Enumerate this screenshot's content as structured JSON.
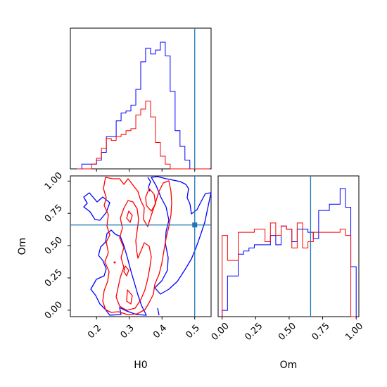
{
  "chart_data": {
    "type": "corner",
    "parameters": [
      "H0",
      "Om"
    ],
    "series_colors": [
      "#0000ff",
      "#ff0000"
    ],
    "truth_color": "#1f77b4",
    "truth": {
      "H0": 0.5,
      "Om": 0.66
    },
    "panels": {
      "h0_hist": {
        "type": "histogram",
        "xlim": [
          0.12,
          0.55
        ],
        "bin_edges": [
          0.14,
          0.155,
          0.17,
          0.185,
          0.2,
          0.215,
          0.23,
          0.245,
          0.26,
          0.275,
          0.29,
          0.305,
          0.32,
          0.335,
          0.35,
          0.365,
          0.38,
          0.395,
          0.41,
          0.425,
          0.44,
          0.455,
          0.47,
          0.485,
          0.5,
          0.515,
          0.53,
          0.545
        ],
        "series": [
          {
            "color": "#0000ff",
            "counts": [
              0,
              1,
              1,
              1,
              3,
              7,
              15,
              15,
              23,
              27,
              28,
              31,
              39,
              53,
              60,
              57,
              59,
              63,
              56,
              38,
              18,
              10,
              3,
              0,
              0,
              0,
              0
            ]
          },
          {
            "color": "#ff0000",
            "counts": [
              0,
              0,
              0,
              1,
              4,
              9,
              14,
              13,
              15,
              16,
              18,
              19,
              26,
              29,
              33,
              25,
              12,
              5,
              1,
              0,
              0,
              0,
              0,
              0,
              0,
              0,
              0
            ]
          }
        ]
      },
      "om_hist": {
        "type": "histogram",
        "xlim": [
          -0.03,
          1.02
        ],
        "xticks": [
          "0.00",
          "0.25",
          "0.50",
          "0.75",
          "1.00"
        ],
        "xlabel": "Om",
        "bin_edges": [
          0,
          0.04,
          0.08,
          0.12,
          0.16,
          0.2,
          0.24,
          0.28,
          0.32,
          0.36,
          0.4,
          0.44,
          0.48,
          0.52,
          0.56,
          0.6,
          0.64,
          0.68,
          0.72,
          0.76,
          0.8,
          0.84,
          0.88,
          0.92,
          0.96,
          1.0
        ],
        "series": [
          {
            "color": "#0000ff",
            "counts": [
              2,
              13,
              13,
              20,
              21,
              22,
              23,
              23,
              23,
              26,
              23,
              29,
              28,
              24,
              28,
              28,
              27,
              25,
              34,
              34,
              36,
              36,
              41,
              35,
              16
            ]
          },
          {
            "color": "#ff0000",
            "counts": [
              26,
              18,
              18,
              27,
              27,
              27,
              28,
              28,
              24,
              30,
              26,
              29,
              28,
              22,
              30,
              22,
              24,
              27,
              27,
              27,
              27,
              27,
              28,
              26,
              0
            ]
          }
        ]
      },
      "h0_om_contour": {
        "type": "contour",
        "xlim": [
          0.12,
          0.55
        ],
        "ylim": [
          -0.05,
          1.04
        ],
        "xticks": [
          "0.2",
          "0.3",
          "0.4",
          "0.5"
        ],
        "yticks": [
          "0.00",
          "0.25",
          "0.50",
          "0.75",
          "1.00"
        ],
        "xlabel": "H0",
        "ylabel": "Om"
      }
    }
  }
}
